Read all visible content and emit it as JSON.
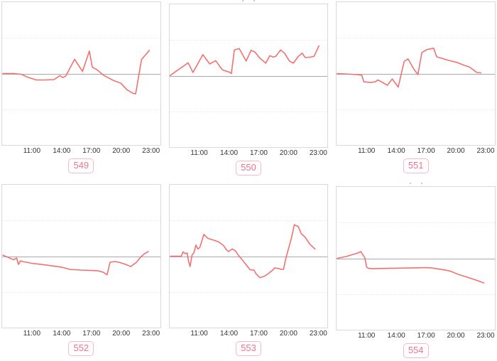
{
  "page": {
    "background_color": "#ffffff"
  },
  "style": {
    "line_color": "#f56f6f",
    "baseline_color": "#a8a8a8",
    "gridline_color": "#e9e9e9",
    "panel_border_color": "#d9d9d9",
    "tick_label_color": "#333333",
    "badge_text_color": "#ef728e",
    "badge_border_color": "#f7b9c6"
  },
  "axis": {
    "tick_labels": [
      "11:00",
      "14:00",
      "17:00",
      "20:00",
      "23:00"
    ],
    "tick_hours": [
      11,
      14,
      17,
      20,
      23
    ],
    "x_domain_hours": [
      7.93,
      24.0
    ],
    "y_domain": [
      -2,
      2
    ],
    "baseline_value": 0,
    "gridline_values": [
      1,
      -1
    ],
    "grid": "faint-dotted",
    "legend": "none"
  },
  "chart_data": [
    {
      "id": "549",
      "label": "549",
      "type": "line",
      "title": "",
      "xlabel": "",
      "ylabel": "",
      "cropped_title": false,
      "points": [
        [
          8,
          0
        ],
        [
          9,
          0
        ],
        [
          9.9,
          -0.02
        ],
        [
          10.5,
          -0.1
        ],
        [
          11.4,
          -0.18
        ],
        [
          12.3,
          -0.18
        ],
        [
          13.2,
          -0.17
        ],
        [
          13.8,
          -0.06
        ],
        [
          14.1,
          -0.11
        ],
        [
          14.4,
          -0.07
        ],
        [
          15.3,
          0.4
        ],
        [
          16.1,
          0.06
        ],
        [
          16.8,
          0.63
        ],
        [
          17.1,
          0.18
        ],
        [
          17.6,
          0.1
        ],
        [
          18.3,
          -0.06
        ],
        [
          19.3,
          -0.2
        ],
        [
          20,
          -0.27
        ],
        [
          20.6,
          -0.45
        ],
        [
          21.2,
          -0.55
        ],
        [
          21.5,
          -0.57
        ],
        [
          22.1,
          0.39
        ],
        [
          22.4,
          0.49
        ],
        [
          22.9,
          0.65
        ]
      ]
    },
    {
      "id": "550",
      "label": "550",
      "type": "line",
      "title": "",
      "xlabel": "",
      "ylabel": "",
      "cropped_title": true,
      "points": [
        [
          7.95,
          0
        ],
        [
          9.8,
          0.36
        ],
        [
          10.3,
          0.09
        ],
        [
          11.3,
          0.59
        ],
        [
          12,
          0.33
        ],
        [
          12.6,
          0.42
        ],
        [
          13.3,
          0.16
        ],
        [
          14,
          0.1
        ],
        [
          14.2,
          0.06
        ],
        [
          14.5,
          0.72
        ],
        [
          15,
          0.76
        ],
        [
          15.7,
          0.41
        ],
        [
          16.2,
          0.71
        ],
        [
          16.6,
          0.66
        ],
        [
          17.1,
          0.49
        ],
        [
          17.7,
          0.35
        ],
        [
          18.1,
          0.56
        ],
        [
          18.45,
          0.52
        ],
        [
          18.7,
          0.54
        ],
        [
          19.2,
          0.72
        ],
        [
          19.6,
          0.63
        ],
        [
          20.1,
          0.41
        ],
        [
          20.5,
          0.35
        ],
        [
          21,
          0.54
        ],
        [
          21.4,
          0.63
        ],
        [
          21.7,
          0.51
        ],
        [
          22.2,
          0.52
        ],
        [
          22.6,
          0.54
        ],
        [
          23.1,
          0.84
        ]
      ]
    },
    {
      "id": "551",
      "label": "551",
      "type": "line",
      "title": "",
      "xlabel": "",
      "ylabel": "",
      "cropped_title": false,
      "points": [
        [
          8,
          0
        ],
        [
          10.1,
          -0.03
        ],
        [
          10.5,
          -0.05
        ],
        [
          10.7,
          -0.23
        ],
        [
          11.4,
          -0.25
        ],
        [
          11.9,
          -0.23
        ],
        [
          12.1,
          -0.18
        ],
        [
          12.5,
          -0.23
        ],
        [
          13.1,
          -0.33
        ],
        [
          13.6,
          -0.15
        ],
        [
          14.2,
          -0.38
        ],
        [
          14.8,
          0.34
        ],
        [
          15.2,
          0.41
        ],
        [
          15.8,
          0.12
        ],
        [
          16.2,
          -0.03
        ],
        [
          16.6,
          0.59
        ],
        [
          17.1,
          0.67
        ],
        [
          17.6,
          0.7
        ],
        [
          17.8,
          0.71
        ],
        [
          18.1,
          0.47
        ],
        [
          18.6,
          0.43
        ],
        [
          19.3,
          0.37
        ],
        [
          20.2,
          0.31
        ],
        [
          20.9,
          0.23
        ],
        [
          21.4,
          0.19
        ],
        [
          21.9,
          0.09
        ],
        [
          22.2,
          0.03
        ],
        [
          22.6,
          0.02
        ]
      ]
    },
    {
      "id": "552",
      "label": "552",
      "type": "line",
      "title": "",
      "xlabel": "",
      "ylabel": "",
      "cropped_title": false,
      "points": [
        [
          8,
          0.03
        ],
        [
          9.1,
          -0.1
        ],
        [
          9.4,
          -0.05
        ],
        [
          9.6,
          -0.23
        ],
        [
          9.8,
          -0.13
        ],
        [
          10,
          -0.15
        ],
        [
          11,
          -0.2
        ],
        [
          12.5,
          -0.25
        ],
        [
          14,
          -0.31
        ],
        [
          14.8,
          -0.37
        ],
        [
          16,
          -0.39
        ],
        [
          17,
          -0.4
        ],
        [
          17.7,
          -0.41
        ],
        [
          18.2,
          -0.45
        ],
        [
          18.6,
          -0.52
        ],
        [
          18.9,
          -0.17
        ],
        [
          19.4,
          -0.15
        ],
        [
          19.8,
          -0.17
        ],
        [
          20.4,
          -0.22
        ],
        [
          21,
          -0.29
        ],
        [
          21.6,
          -0.17
        ],
        [
          22,
          -0.03
        ],
        [
          22.4,
          0.07
        ],
        [
          22.8,
          0.13
        ]
      ]
    },
    {
      "id": "553",
      "label": "553",
      "type": "line",
      "title": "",
      "xlabel": "",
      "ylabel": "",
      "cropped_title": false,
      "points": [
        [
          8,
          0
        ],
        [
          9.1,
          0
        ],
        [
          9.3,
          0.12
        ],
        [
          9.5,
          0.07
        ],
        [
          9.7,
          0.09
        ],
        [
          9.85,
          -0.15
        ],
        [
          10,
          -0.29
        ],
        [
          10.2,
          0.03
        ],
        [
          10.4,
          0.1
        ],
        [
          10.6,
          0.31
        ],
        [
          10.8,
          0.2
        ],
        [
          11,
          0.25
        ],
        [
          11.4,
          0.61
        ],
        [
          11.8,
          0.5
        ],
        [
          12.4,
          0.45
        ],
        [
          12.9,
          0.4
        ],
        [
          13.4,
          0.3
        ],
        [
          13.7,
          0.18
        ],
        [
          13.9,
          0.13
        ],
        [
          14.3,
          0.2
        ],
        [
          14.6,
          0.15
        ],
        [
          14.9,
          0.03
        ],
        [
          15.6,
          -0.2
        ],
        [
          16.1,
          -0.38
        ],
        [
          16.5,
          -0.39
        ],
        [
          16.7,
          -0.49
        ],
        [
          17.1,
          -0.6
        ],
        [
          17.5,
          -0.57
        ],
        [
          17.9,
          -0.5
        ],
        [
          18.4,
          -0.39
        ],
        [
          18.6,
          -0.33
        ],
        [
          18.9,
          -0.34
        ],
        [
          19.3,
          -0.37
        ],
        [
          19.5,
          -0.37
        ],
        [
          19.7,
          -0.1
        ],
        [
          20.3,
          0.5
        ],
        [
          20.6,
          0.88
        ],
        [
          21,
          0.83
        ],
        [
          21.3,
          0.63
        ],
        [
          21.7,
          0.53
        ],
        [
          22.2,
          0.33
        ],
        [
          22.7,
          0.2
        ]
      ]
    },
    {
      "id": "554",
      "label": "554",
      "type": "line",
      "title": "",
      "xlabel": "",
      "ylabel": "",
      "cropped_title": true,
      "points": [
        [
          8,
          0
        ],
        [
          8.9,
          0.05
        ],
        [
          10.1,
          0.15
        ],
        [
          10.4,
          0.19
        ],
        [
          10.6,
          0.1
        ],
        [
          10.8,
          0.02
        ],
        [
          11,
          -0.25
        ],
        [
          11.2,
          -0.28
        ],
        [
          11.5,
          -0.29
        ],
        [
          13.5,
          -0.28
        ],
        [
          15.5,
          -0.27
        ],
        [
          17,
          -0.26
        ],
        [
          17.6,
          -0.27
        ],
        [
          18.3,
          -0.3
        ],
        [
          19,
          -0.33
        ],
        [
          19.5,
          -0.36
        ],
        [
          20.3,
          -0.45
        ],
        [
          21,
          -0.51
        ],
        [
          22,
          -0.6
        ],
        [
          22.7,
          -0.67
        ],
        [
          22.9,
          -0.69
        ]
      ]
    }
  ]
}
